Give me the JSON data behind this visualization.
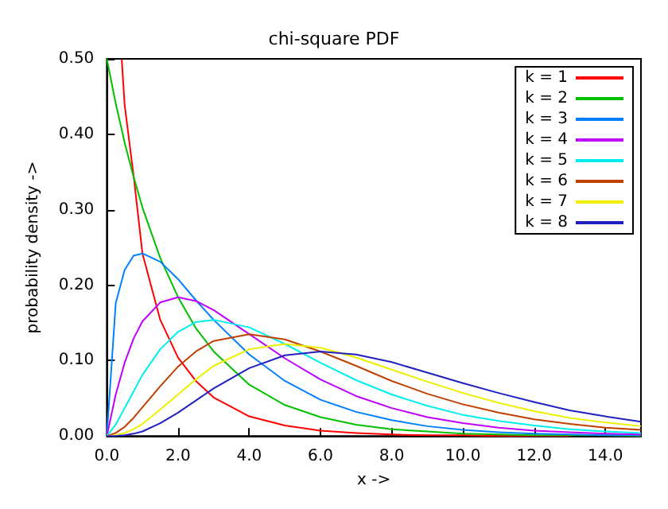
{
  "chart_data": {
    "type": "line",
    "title": "chi-square PDF",
    "xlabel": "x ->",
    "ylabel": "probability density ->",
    "xlim": [
      0,
      15
    ],
    "ylim": [
      0,
      0.5
    ],
    "xticks": [
      {
        "value": 0,
        "label": "0.0"
      },
      {
        "value": 2,
        "label": "2.0"
      },
      {
        "value": 4,
        "label": "4.0"
      },
      {
        "value": 6,
        "label": "6.0"
      },
      {
        "value": 8,
        "label": "8.0"
      },
      {
        "value": 10,
        "label": "10.0"
      },
      {
        "value": 12,
        "label": "12.0"
      },
      {
        "value": 14,
        "label": "14.0"
      }
    ],
    "yticks": [
      {
        "value": 0,
        "label": "0.00"
      },
      {
        "value": 0.1,
        "label": "0.10"
      },
      {
        "value": 0.2,
        "label": "0.20"
      },
      {
        "value": 0.3,
        "label": "0.30"
      },
      {
        "value": 0.4,
        "label": "0.40"
      },
      {
        "value": 0.5,
        "label": "0.50"
      }
    ],
    "x": [
      0,
      0.25,
      0.5,
      0.75,
      1,
      1.5,
      2,
      2.5,
      3,
      4,
      5,
      6,
      7,
      8,
      9,
      10,
      11,
      12,
      13,
      14,
      15
    ],
    "grid": false,
    "legend": "top right",
    "marker": "none",
    "line_style": "solid",
    "series": [
      {
        "name": "k = 1",
        "color": "#ff0000",
        "x": [
          0.42,
          0.5,
          0.75,
          1,
          1.5,
          2,
          2.5,
          3,
          4,
          5,
          6,
          7,
          8,
          9,
          10,
          11,
          12,
          13
        ],
        "values": [
          0.499,
          0.439,
          0.346,
          0.242,
          0.154,
          0.104,
          0.073,
          0.051,
          0.026,
          0.014,
          0.007,
          0.004,
          0.002,
          0.001,
          0.001,
          0,
          0,
          0
        ]
      },
      {
        "name": "k = 2",
        "color": "#00c000",
        "values": [
          0.5,
          0.441,
          0.389,
          0.344,
          0.303,
          0.236,
          0.184,
          0.143,
          0.112,
          0.068,
          0.041,
          0.025,
          0.015,
          0.009,
          0.006,
          0.003,
          0.002,
          0.001,
          0.001,
          0.001,
          0
        ]
      },
      {
        "name": "k = 3",
        "color": "#0080ff",
        "values": [
          0,
          0.176,
          0.22,
          0.239,
          0.242,
          0.231,
          0.208,
          0.18,
          0.154,
          0.108,
          0.073,
          0.048,
          0.032,
          0.021,
          0.013,
          0.008,
          0.005,
          0.003,
          0.002,
          0.001,
          0.001
        ]
      },
      {
        "name": "k = 4",
        "color": "#c000ff",
        "values": [
          0,
          0.055,
          0.097,
          0.129,
          0.152,
          0.177,
          0.184,
          0.179,
          0.167,
          0.135,
          0.103,
          0.075,
          0.053,
          0.037,
          0.025,
          0.017,
          0.011,
          0.007,
          0.005,
          0.003,
          0.002
        ]
      },
      {
        "name": "k = 5",
        "color": "#00eeee",
        "values": [
          0,
          0.015,
          0.037,
          0.059,
          0.081,
          0.115,
          0.138,
          0.151,
          0.154,
          0.144,
          0.122,
          0.097,
          0.074,
          0.055,
          0.04,
          0.028,
          0.02,
          0.014,
          0.009,
          0.006,
          0.004
        ]
      },
      {
        "name": "k = 6",
        "color": "#c04000",
        "values": [
          0,
          0.004,
          0.012,
          0.024,
          0.038,
          0.066,
          0.092,
          0.112,
          0.126,
          0.135,
          0.128,
          0.112,
          0.093,
          0.073,
          0.056,
          0.042,
          0.031,
          0.022,
          0.016,
          0.011,
          0.008
        ]
      },
      {
        "name": "k = 7",
        "color": "#eeee00",
        "values": [
          0,
          0.001,
          0.004,
          0.009,
          0.016,
          0.035,
          0.055,
          0.075,
          0.093,
          0.115,
          0.122,
          0.117,
          0.104,
          0.088,
          0.072,
          0.057,
          0.044,
          0.033,
          0.024,
          0.018,
          0.013
        ]
      },
      {
        "name": "k = 8",
        "color": "#2020c0",
        "values": [
          0,
          0,
          0.001,
          0.003,
          0.006,
          0.017,
          0.031,
          0.047,
          0.063,
          0.09,
          0.107,
          0.112,
          0.108,
          0.098,
          0.084,
          0.07,
          0.057,
          0.045,
          0.034,
          0.026,
          0.019
        ]
      }
    ]
  }
}
